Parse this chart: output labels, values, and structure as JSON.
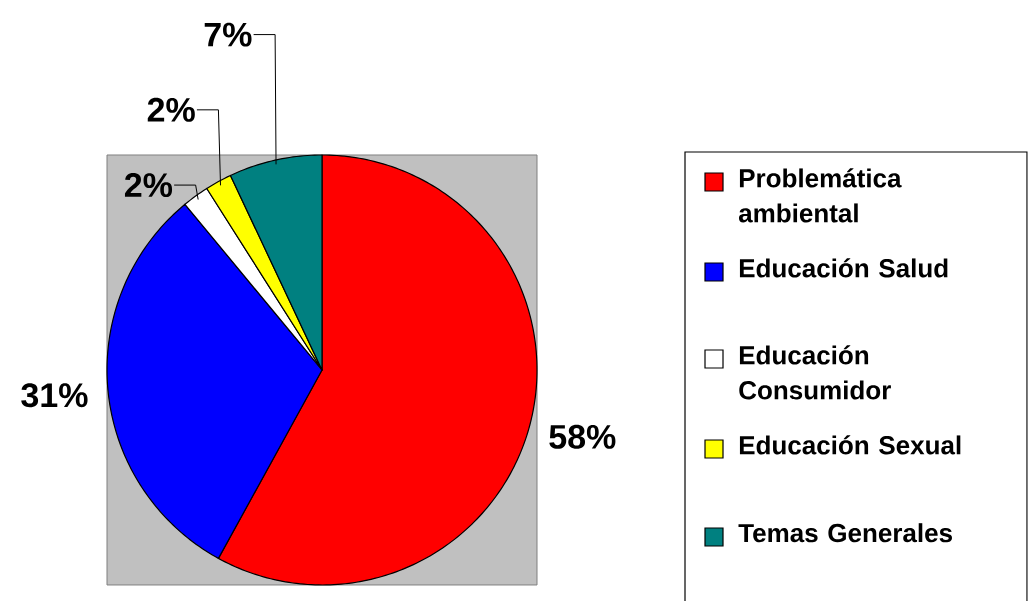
{
  "chart_data": {
    "type": "pie",
    "categories": [
      "Problemática ambiental",
      "Educación Salud",
      "Educación Consumidor",
      "Educación Sexual",
      "Temas Generales"
    ],
    "values": [
      58,
      31,
      2,
      2,
      7
    ],
    "colors": [
      "#ff0000",
      "#0000ff",
      "#ffffff",
      "#ffff00",
      "#008080"
    ],
    "value_labels": [
      "58%",
      "31%",
      "2%",
      "2%",
      "7%"
    ],
    "legend": "right"
  }
}
